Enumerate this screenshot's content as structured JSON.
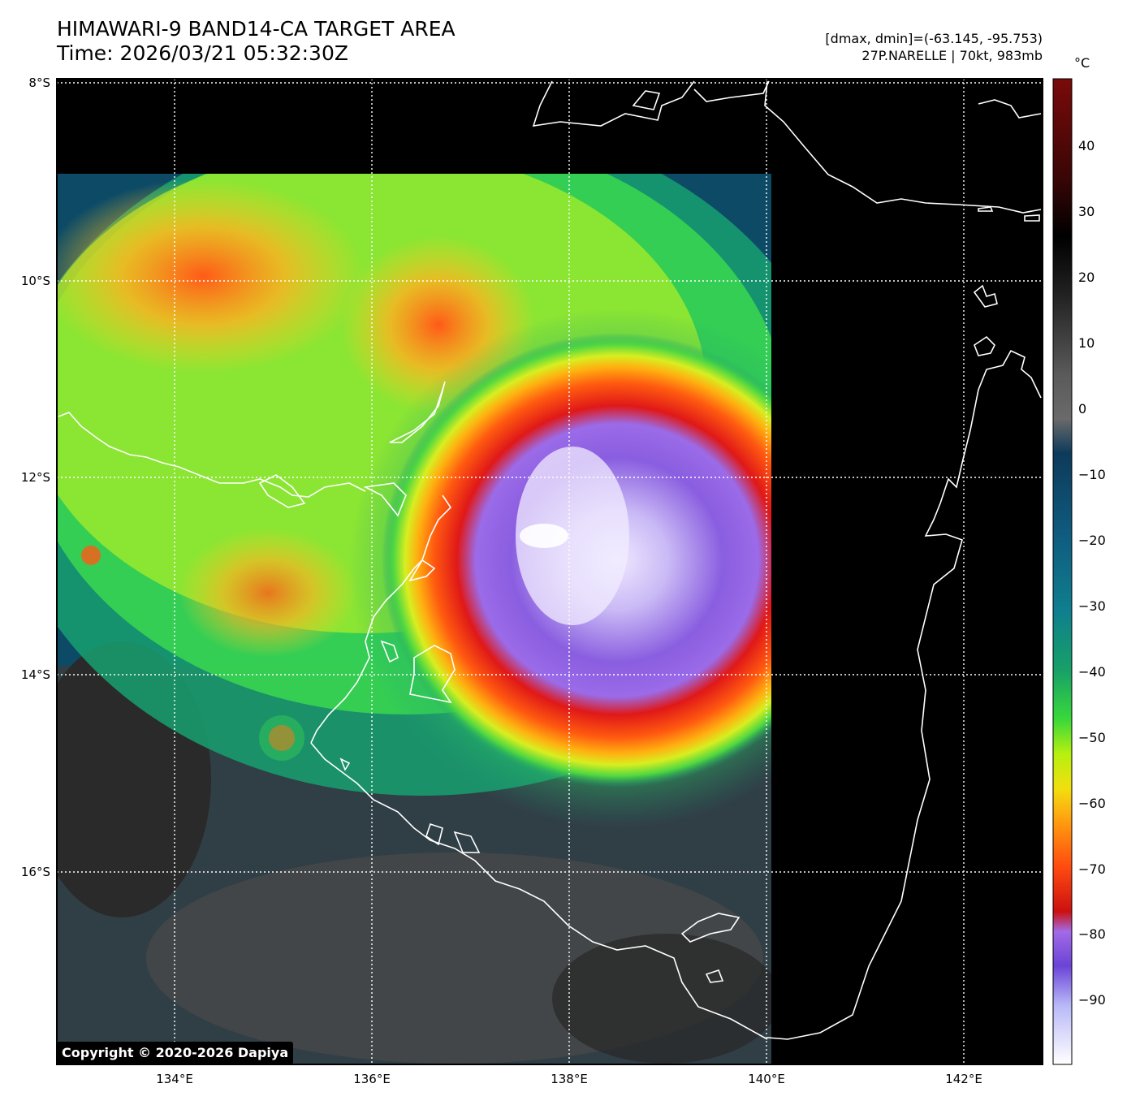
{
  "header": {
    "title_line1": "HIMAWARI-9 BAND14-CA TARGET AREA",
    "title_line2": "Time: 2026/03/21 05:32:30Z",
    "info_line1": "[dmax, dmin]=(-63.145, -95.753)",
    "info_line2": "27P.NARELLE | 70kt, 983mb"
  },
  "map": {
    "lat_labels": [
      "8°S",
      "10°S",
      "12°S",
      "14°S",
      "16°S"
    ],
    "lon_labels": [
      "134°E",
      "136°E",
      "138°E",
      "140°E",
      "142°E"
    ],
    "extent": {
      "lon": [
        132.8,
        142.8
      ],
      "lat": [
        -8.0,
        -18.0
      ]
    },
    "copyright": "Copyright © 2020-2026 Dapiya"
  },
  "colorbar": {
    "unit": "°C",
    "ticks": [
      "40",
      "30",
      "20",
      "10",
      "0",
      "−10",
      "−20",
      "−30",
      "−40",
      "−50",
      "−60",
      "−70",
      "−80",
      "−90"
    ],
    "range": [
      -100,
      50
    ]
  },
  "storm": {
    "name": "27P.NARELLE",
    "intensity": "70kt, 983mb",
    "center": {
      "lon": 138.0,
      "lat": -12.5
    }
  }
}
